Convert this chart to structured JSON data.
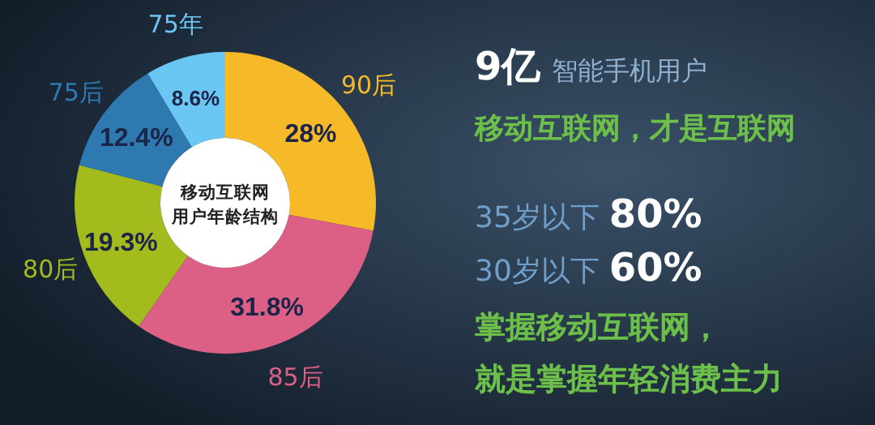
{
  "chart_data": {
    "type": "donut",
    "title": "移动互联网",
    "subtitle": "用户年龄结构",
    "categories": [
      "90后",
      "85后",
      "80后",
      "75后",
      "75年"
    ],
    "values": [
      28,
      31.8,
      19.3,
      12.4,
      8.6
    ],
    "value_labels": [
      "28%",
      "31.8%",
      "19.3%",
      "12.4%",
      "8.6%"
    ],
    "colors": [
      "#f6b927",
      "#dc5f86",
      "#a4bb1e",
      "#2d79b0",
      "#6ac6f2"
    ],
    "annotations": [
      "9亿",
      "智能手机用户",
      "移动互联网，才是互联网",
      "35岁以下",
      "80%",
      "30岁以下",
      "60%",
      "掌握移动互联网，",
      "就是掌握年轻消费主力"
    ]
  }
}
